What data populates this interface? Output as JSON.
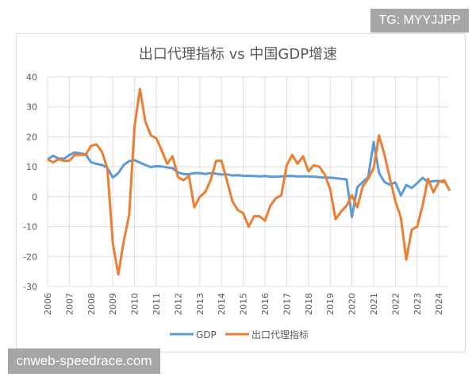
{
  "watermarks": {
    "top": "TG: MYYJJPP",
    "bottom": "cnweb-speedrace.com"
  },
  "chart_data": {
    "type": "line",
    "title": "出口代理指标 vs 中国GDP增速",
    "xlabel": "",
    "ylabel": "",
    "ylim": [
      -30,
      40
    ],
    "yticks": [
      "40",
      "30",
      "20",
      "10",
      "0",
      "-10",
      "-20",
      "-30"
    ],
    "xticks": [
      "2006",
      "2007",
      "2008",
      "2009",
      "2010",
      "2011",
      "2012",
      "2013",
      "2014",
      "2015",
      "2016",
      "2017",
      "2018",
      "2019",
      "2020",
      "2021",
      "2022",
      "2023",
      "2024"
    ],
    "x_start": "2006Q1",
    "frequency": "quarterly",
    "grid": true,
    "legend": "bottom",
    "series": [
      {
        "name": "GDP",
        "color": "#5b9bd5",
        "values": [
          12.5,
          13.7,
          12.8,
          12.7,
          13.9,
          14.8,
          14.5,
          14.2,
          11.5,
          11.0,
          10.6,
          9.7,
          6.4,
          7.9,
          10.6,
          11.9,
          12.2,
          11.4,
          10.6,
          9.9,
          10.2,
          10.1,
          9.8,
          9.5,
          8.1,
          7.6,
          7.5,
          7.9,
          7.9,
          7.6,
          7.9,
          7.7,
          7.4,
          7.5,
          7.1,
          7.2,
          7.0,
          7.0,
          6.9,
          6.8,
          6.9,
          6.7,
          6.7,
          6.8,
          6.9,
          6.9,
          6.8,
          6.8,
          6.8,
          6.7,
          6.5,
          6.4,
          6.4,
          6.2,
          6.0,
          5.8,
          -6.8,
          3.2,
          4.9,
          6.5,
          18.3,
          7.9,
          4.9,
          4.0,
          4.8,
          0.4,
          3.9,
          2.9,
          4.5,
          6.3,
          4.9,
          5.2,
          5.3,
          4.7
        ]
      },
      {
        "name": "出口代理指标",
        "color": "#ed7d31",
        "values": [
          12.5,
          11.5,
          12.5,
          12,
          12,
          14,
          14,
          14,
          17,
          17.5,
          15,
          9.5,
          -15.5,
          -26,
          -15,
          -6,
          23.5,
          36,
          25,
          20.5,
          19.5,
          15.5,
          11,
          13.5,
          6.5,
          5.5,
          7,
          -3.5,
          0,
          1.5,
          5.5,
          12,
          12,
          5.5,
          -1.5,
          -4.5,
          -5.5,
          -10,
          -6.5,
          -6.5,
          -8,
          -3,
          -0.5,
          0.5,
          10.5,
          14,
          11,
          13.5,
          8.5,
          10.5,
          10,
          7.5,
          2.5,
          -7.5,
          -5,
          -3,
          0.5,
          -3.5,
          3.5,
          6,
          9.5,
          20.5,
          14,
          6,
          -1.5,
          -7,
          -21,
          -11,
          -10,
          -3,
          6,
          1.5,
          5,
          5.5,
          2
        ]
      }
    ]
  }
}
